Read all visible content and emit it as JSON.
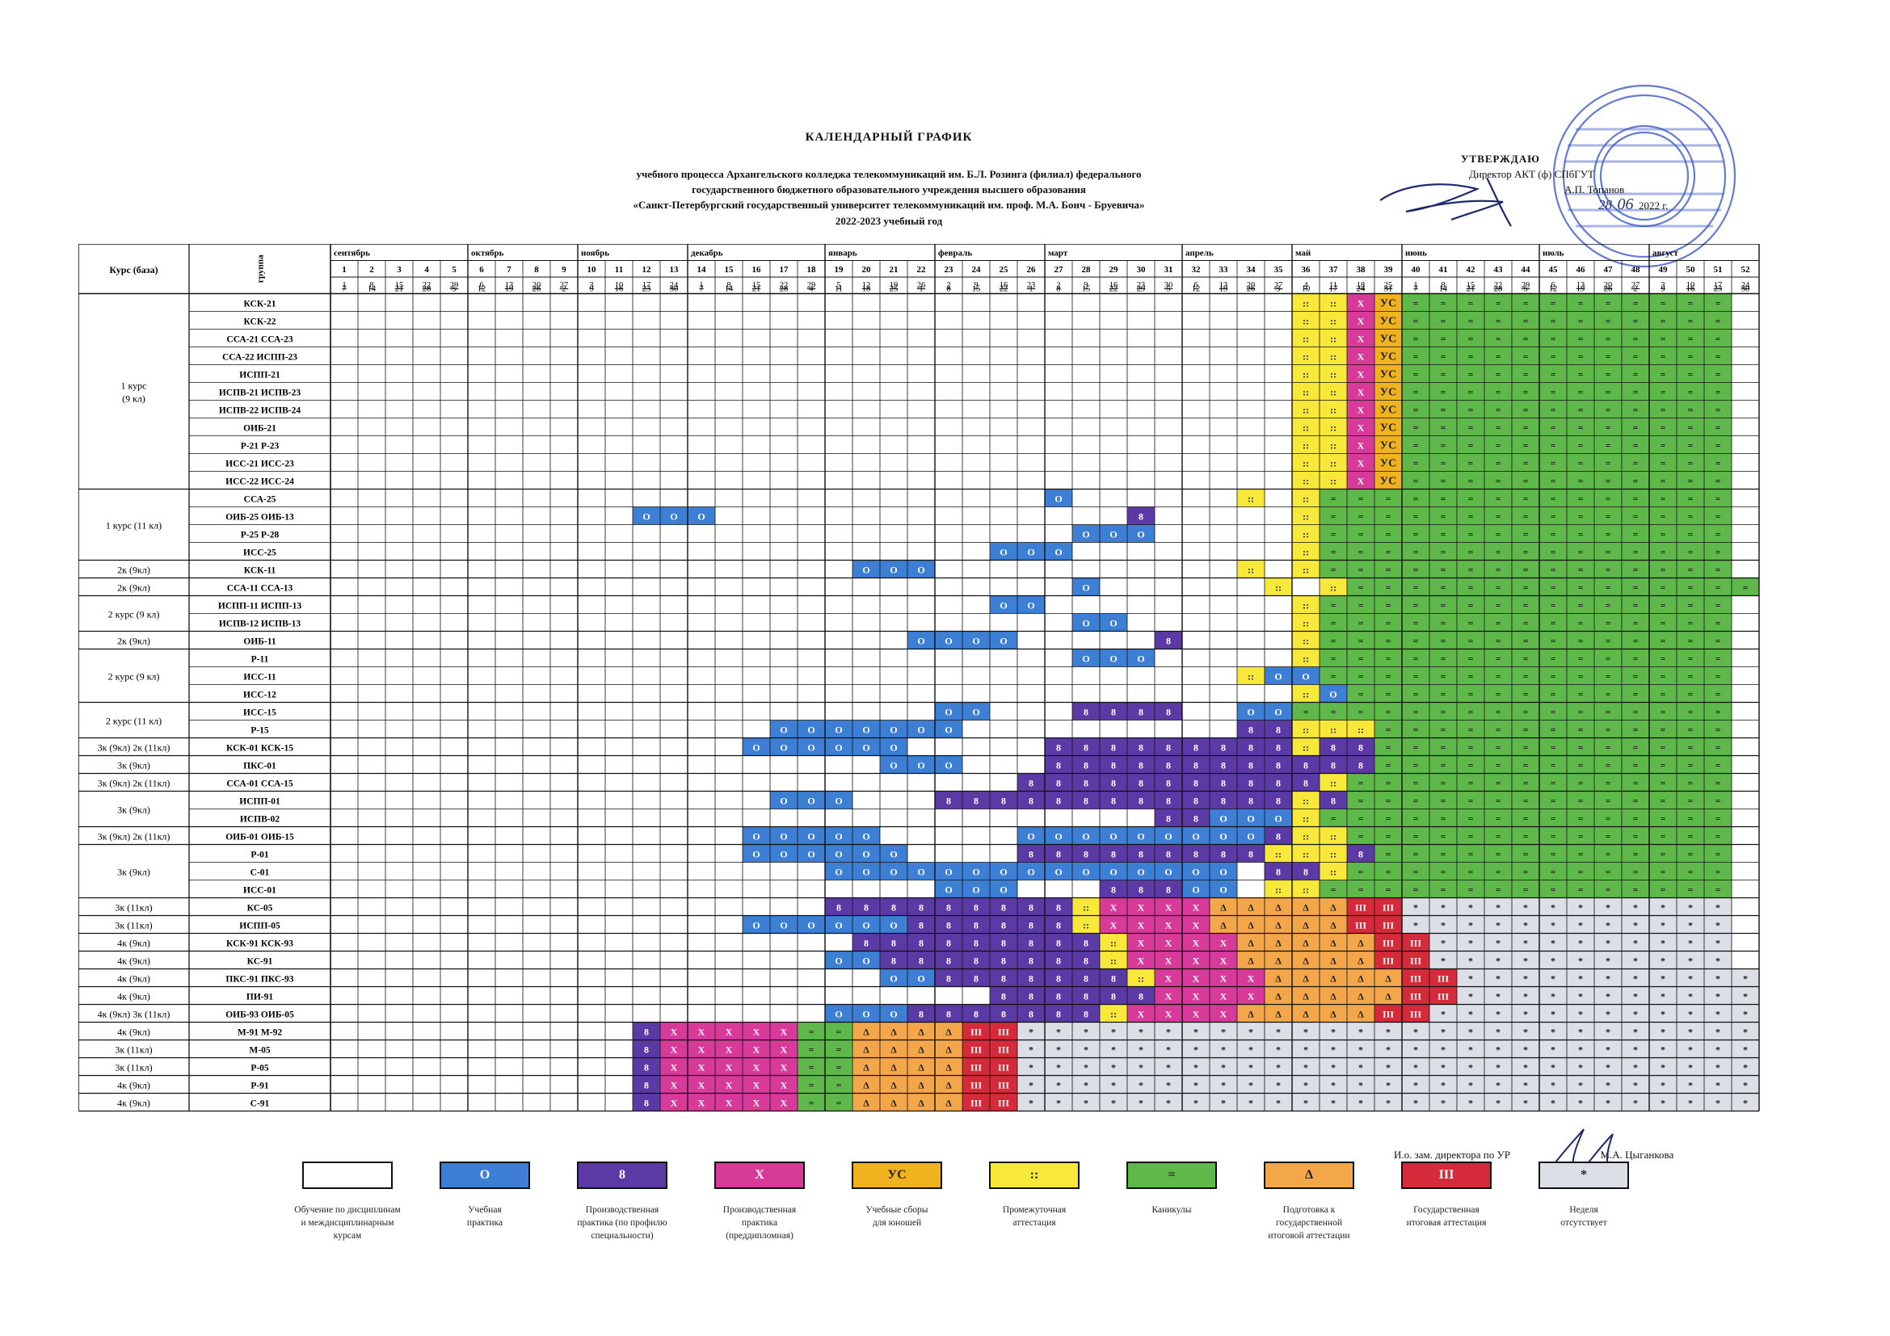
{
  "title": "КАЛЕНДАРНЫЙ ГРАФИК",
  "subtitle_lines": [
    "учебного процесса Архангельского колледжа телекоммуникаций им. Б.Л. Розинга (филиал) федерального",
    "государственного бюджетного образовательного учреждения высшего образования",
    "«Санкт-Петербургский государственный университет телекоммуникаций им. проф. М.А. Бонч - Бруевича»"
  ],
  "year": "2022-2023 учебный год",
  "approval": {
    "l1": "УТВЕРЖДАЮ",
    "l2": "Директор АКТ (ф) СПбГУТ",
    "l3": "А.П. Топанов",
    "l4": "2022 г.",
    "day": "28",
    "month": "06"
  },
  "headers": {
    "course": "Курс (база)",
    "group": "группа"
  },
  "months": [
    {
      "name": "сентябрь",
      "w": [
        1,
        5
      ]
    },
    {
      "name": "октябрь",
      "w": [
        6,
        9
      ]
    },
    {
      "name": "ноябрь",
      "w": [
        10,
        13
      ]
    },
    {
      "name": "декабрь",
      "w": [
        14,
        18
      ]
    },
    {
      "name": "январь",
      "w": [
        19,
        22
      ]
    },
    {
      "name": "февраль",
      "w": [
        23,
        26
      ]
    },
    {
      "name": "март",
      "w": [
        27,
        31
      ]
    },
    {
      "name": "апрель",
      "w": [
        32,
        35
      ]
    },
    {
      "name": "май",
      "w": [
        36,
        39
      ]
    },
    {
      "name": "июнь",
      "w": [
        40,
        44
      ]
    },
    {
      "name": "июль",
      "w": [
        45,
        48
      ]
    },
    {
      "name": "август",
      "w": [
        49,
        52
      ]
    }
  ],
  "weeks_from": [
    "1",
    "8",
    "15",
    "22",
    "29",
    "6",
    "13",
    "20",
    "27",
    "3",
    "10",
    "17",
    "24",
    "1",
    "8",
    "15",
    "22",
    "29",
    "5",
    "12",
    "19",
    "26",
    "2",
    "9",
    "16",
    "23",
    "2",
    "9",
    "16",
    "23",
    "30",
    "6",
    "13",
    "20",
    "27",
    "4",
    "11",
    "18",
    "25",
    "1",
    "8",
    "15",
    "22",
    "29",
    "6",
    "13",
    "20",
    "27",
    "3",
    "10",
    "17",
    "24"
  ],
  "weeks_to": [
    "7",
    "14",
    "21",
    "28",
    "5",
    "12",
    "19",
    "26",
    "2",
    "9",
    "16",
    "23",
    "30",
    "7",
    "14",
    "21",
    "28",
    "4",
    "11",
    "18",
    "25",
    "1",
    "8",
    "15",
    "22",
    "1",
    "8",
    "15",
    "22",
    "29",
    "5",
    "12",
    "19",
    "26",
    "3",
    "10",
    "17",
    "24",
    "31",
    "7",
    "14",
    "21",
    "28",
    "5",
    "12",
    "19",
    "26",
    "2",
    "9",
    "16",
    "23",
    "30"
  ],
  "course_groups": [
    {
      "label": "1 курс\n(9 кл)",
      "rows": 11
    },
    {
      "label": "1 курс (11 кл)",
      "rows": 4
    },
    {
      "label": "2к (9кл)",
      "rows": 1
    },
    {
      "label": "2к (9кл)",
      "rows": 1
    },
    {
      "label": "2 курс (9 кл)",
      "rows": 2
    },
    {
      "label": "2к (9кл)",
      "rows": 1
    },
    {
      "label": "2 курс (9 кл)",
      "rows": 3
    },
    {
      "label": "2 курс (11 кл)",
      "rows": 2
    },
    {
      "label": "3к (9кл) 2к (11кл)",
      "rows": 1
    },
    {
      "label": "3к (9кл)",
      "rows": 1
    },
    {
      "label": "3к (9кл) 2к (11кл)",
      "rows": 1
    },
    {
      "label": "3к (9кл)",
      "rows": 2
    },
    {
      "label": "3к (9кл) 2к (11кл)",
      "rows": 1
    },
    {
      "label": "3к (9кл)",
      "rows": 3
    },
    {
      "label": "3к (11кл)",
      "rows": 1
    },
    {
      "label": "3к (11кл)",
      "rows": 1
    },
    {
      "label": "4к (9кл)",
      "rows": 1
    },
    {
      "label": "4к (9кл)",
      "rows": 1
    },
    {
      "label": "4к (9кл)",
      "rows": 1
    },
    {
      "label": "4к (9кл)",
      "rows": 1
    },
    {
      "label": "4к (9кл) 3к (11кл)",
      "rows": 1
    },
    {
      "label": "4к (9кл)",
      "rows": 1
    },
    {
      "label": "3к (11кл)",
      "rows": 1
    },
    {
      "label": "3к (11кл)",
      "rows": 1
    },
    {
      "label": "4к (9кл)",
      "rows": 1
    },
    {
      "label": "4к (9кл)",
      "rows": 1
    }
  ],
  "groups": [
    "КСК-21",
    "КСК-22",
    "ССА-21 ССА-23",
    "ССА-22 ИСПП-23",
    "ИСПП-21",
    "ИСПВ-21 ИСПВ-23",
    "ИСПВ-22 ИСПВ-24",
    "ОИБ-21",
    "Р-21 Р-23",
    "ИСС-21 ИСС-23",
    "ИСС-22 ИСС-24",
    "ССА-25",
    "ОИБ-25 ОИБ-13",
    "Р-25 Р-28",
    "ИСС-25",
    "КСК-11",
    "ССА-11 ССА-13",
    "ИСПП-11 ИСПП-13",
    "ИСПВ-12 ИСПВ-13",
    "ОИБ-11",
    "Р-11",
    "ИСС-11",
    "ИСС-12",
    "ИСС-15",
    "Р-15",
    "КСК-01 КСК-15",
    "ПКС-01",
    "ССА-01 ССА-15",
    "ИСПП-01",
    "ИСПВ-02",
    "ОИБ-01 ОИБ-15",
    "Р-01",
    "С-01",
    "ИСС-01",
    "КС-05",
    "ИСПП-05",
    "КСК-91 КСК-93",
    "КС-91",
    "ПКС-91 ПКС-93",
    "ПИ-91",
    "ОИБ-93 ОИБ-05",
    "М-91 М-92",
    "М-05",
    "Р-05",
    "Р-91",
    "С-91"
  ],
  "schedule": [
    "...................................aaxsvvvvvvvvvvvv",
    "...................................aaxsvvvvvvvvvvvv",
    "...................................aaxsvvvvvvvvvvvv",
    "...................................aaxsvvvvvvvvvvvv",
    "...................................aaxsvvvvvvvvvvvv",
    "...................................aaxsvvvvvvvvvvvv",
    "...................................aaxsvvvvvvvvvvvv",
    "...................................aaxsvvvvvvvvvvvv",
    "...................................aaxsvvvvvvvvvvvv",
    "...................................aaxsvvvvvvvvvvvv",
    "...................................aaxsvvvvvvvvvvvv",
    "..........................o......a.avvvvvvvvvvvvvvv",
    "...........ooo...............p.....avvvvvvvvvvvvvvv",
    "...........................ooo.....avvvvvvvvvvvvvvv",
    "........................ooo........avvvvvvvvvvvvvvv",
    "...................ooo...........a.avvvvvvvvvvvvvvv",
    "...........................o......a.avvvvvvvvvvvvvvv",
    "........................oo.........avvvvvvvvvvvvvvv",
    "...........................oo......avvvvvvvvvvvvvvv",
    ".....................oooo.....p....avvvvvvvvvvvvvvv",
    "...........................ooo.....avvvvvvvvvvvvvvv",
    ".................................aoovvvvvvvvvvvvvvv",
    "...................................aovvvvvvvvvvvvvv",
    "......................oo...pppp..oovvvvvvvvvvvvvvvv",
    "................ooooooo..........ppaaavvvvvvvvvvvvv",
    "...............oooooo.....pppppppppappvvvvvvvvvvvvv",
    "....................ooo...ppppppppppppvvvvvvvvvvvvv",
    ".........................pppppppppppavvvvvvvvvvvvvv",
    "................ooo...pppppppppppppapvvvvvvvvvvvvvv",
    "..............................ppoooavvvvvvvvvvvvvvv",
    "...............ooooo.....ooooooooopaavvvvvvvvvvvvvv",
    "...............oooooo....pppppppppaaapvvvvvvvvvvvvv",
    "..................ooooooooooooooo.ppavvvvvvvvvvvvvv",
    "......................ooo...pppoo.aavvvvvvvvvvvvvvv",
    "..................pppppppppaxxxxdddddggnnnnnnnnnnnn",
    "...............ooooooppppppaxxxxdddddggnnnnnnnnnnnn",
    "...................pppppppppaxxxxdddddggnnnnnnnnnnn",
    "..................ooppppppppaxxxxdddddggnnnnnnnnnnn",
    "....................oopppppppaxxxxdddddggnnnnnnnnnnn",
    "........................ppppppxxxxdddddggnnnnnnnnnnn",
    "..................ooopppppppaxxxxdddddggnnnnnnnnnnnn",
    "...........pxxxxxvvddddggnnnnnnnnnnnnnnnnnnnnnnnnnnn",
    "...........pxxxxxvvddddggnnnnnnnnnnnnnnnnnnnnnnnnnnn",
    "...........pxxxxxvvddddggnnnnnnnnnnnnnnnnnnnnnnnnnnn",
    "...........pxxxxxvvddddggnnnnnnnnnnnnnnnnnnnnnnnnnnn",
    "...........pxxxxxvvddddggnnnnnnnnnnnnnnnnnnnnnnnnnnn"
  ],
  "symbols": {
    "o": "О",
    "p": "8",
    "x": "Х",
    "s": "УС",
    "a": "::",
    "v": "=",
    "d": "Δ",
    "g": "III",
    "n": "*"
  },
  "colors": {
    "o": "#3d7fd4",
    "p": "#5b3aa6",
    "x": "#d83a9a",
    "s": "#f0b21e",
    "a": "#f8e83a",
    "v": "#5fb84a",
    "d": "#f4a64a",
    "g": "#d42a3a",
    "n": "#dcdfe6"
  },
  "legend": [
    {
      "key": "",
      "color": "#ffffff",
      "symbol": "",
      "label": "Обучение по дисциплинам\nи междисциплинарным\nкурсам"
    },
    {
      "key": "o",
      "color": "#3d7fd4",
      "symbol": "О",
      "label": "Учебная\nпрактика"
    },
    {
      "key": "p",
      "color": "#5b3aa6",
      "symbol": "8",
      "label": "Производственная\nпрактика (по профилю\nспециальности)"
    },
    {
      "key": "x",
      "color": "#d83a9a",
      "symbol": "Х",
      "label": "Производственная\nпрактика\n(преддипломная)"
    },
    {
      "key": "s",
      "color": "#f0b21e",
      "symbol": "УС",
      "label": "Учебные сборы\nдля юношей"
    },
    {
      "key": "a",
      "color": "#f8e83a",
      "symbol": "::",
      "label": "Промежуточная\nаттестация"
    },
    {
      "key": "v",
      "color": "#5fb84a",
      "symbol": "=",
      "label": "Каникулы"
    },
    {
      "key": "d",
      "color": "#f4a64a",
      "symbol": "Δ",
      "label": "Подготовка к\nгосударственной\nитоговой аттестации"
    },
    {
      "key": "g",
      "color": "#d42a3a",
      "symbol": "III",
      "label": "Государственная\nитоговая аттестация"
    },
    {
      "key": "n",
      "color": "#dcdfe6",
      "symbol": "*",
      "label": "Неделя\nотсутствует"
    }
  ],
  "signature": {
    "role": "И.о. зам. директора по УР",
    "name": "М.А. Цыганкова"
  }
}
